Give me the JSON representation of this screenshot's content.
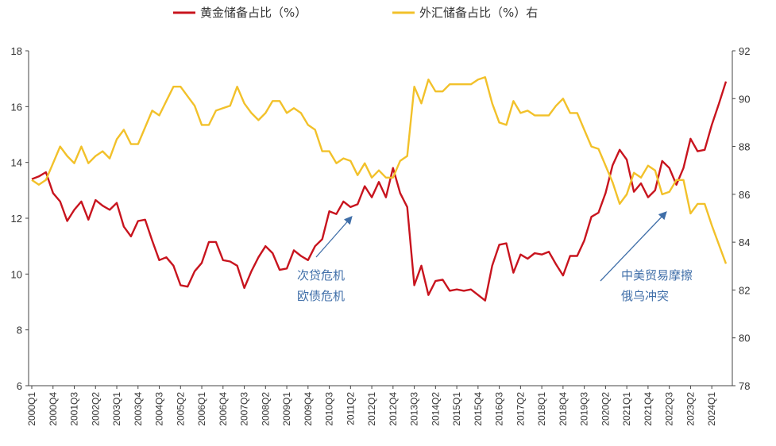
{
  "chart_data": {
    "type": "line",
    "legend": {
      "placement": "top-center"
    },
    "grid": false,
    "y_left": {
      "min": 6,
      "max": 18,
      "ticks": [
        6,
        8,
        10,
        12,
        14,
        16,
        18
      ]
    },
    "y_right": {
      "min": 78,
      "max": 92,
      "ticks": [
        78,
        80,
        82,
        84,
        86,
        88,
        90,
        92
      ]
    },
    "x_tick_labels": [
      "2000Q1",
      "2000Q4",
      "2001Q3",
      "2002Q2",
      "2003Q1",
      "2003Q4",
      "2004Q3",
      "2005Q2",
      "2006Q1",
      "2006Q4",
      "2007Q3",
      "2008Q2",
      "2009Q1",
      "2009Q4",
      "2010Q3",
      "2011Q2",
      "2012Q1",
      "2012Q4",
      "2013Q3",
      "2014Q2",
      "2015Q1",
      "2015Q4",
      "2016Q3",
      "2017Q2",
      "2018Q1",
      "2018Q4",
      "2019Q3",
      "2020Q2",
      "2021Q1",
      "2021Q4",
      "2022Q3",
      "2023Q2",
      "2024Q1"
    ],
    "x_start_quarter": "2000Q1",
    "series": [
      {
        "name": "黄金储备占比（%）",
        "axis": "left",
        "color": "#c8141e",
        "values": [
          13.4,
          13.5,
          13.65,
          12.9,
          12.6,
          11.9,
          12.3,
          12.6,
          11.95,
          12.65,
          12.45,
          12.3,
          12.55,
          11.7,
          11.35,
          11.9,
          11.95,
          11.2,
          10.5,
          10.6,
          10.3,
          9.6,
          9.55,
          10.1,
          10.4,
          11.15,
          11.15,
          10.5,
          10.45,
          10.3,
          9.5,
          10.1,
          10.6,
          11.0,
          10.75,
          10.15,
          10.2,
          10.85,
          10.65,
          10.5,
          11.0,
          11.25,
          12.25,
          12.15,
          12.6,
          12.4,
          12.5,
          13.15,
          12.75,
          13.3,
          12.75,
          13.8,
          12.9,
          12.4,
          9.6,
          10.3,
          9.25,
          9.75,
          9.8,
          9.4,
          9.45,
          9.4,
          9.45,
          9.25,
          9.05,
          10.3,
          11.05,
          11.1,
          10.05,
          10.7,
          10.55,
          10.75,
          10.7,
          10.8,
          10.35,
          9.95,
          10.65,
          10.65,
          11.2,
          12.05,
          12.2,
          12.9,
          13.9,
          14.45,
          14.1,
          12.95,
          13.25,
          12.75,
          13.0,
          14.05,
          13.8,
          13.2,
          13.8,
          14.85,
          14.4,
          14.45,
          15.35,
          16.1,
          16.9
        ]
      },
      {
        "name": "外汇储备占比（%）右",
        "axis": "right",
        "color": "#f2c12a",
        "values": [
          86.6,
          86.4,
          86.6,
          87.3,
          88.0,
          87.6,
          87.3,
          88.0,
          87.3,
          87.6,
          87.8,
          87.5,
          88.3,
          88.7,
          88.1,
          88.1,
          88.8,
          89.5,
          89.3,
          89.9,
          90.5,
          90.5,
          90.1,
          89.7,
          88.9,
          88.9,
          89.5,
          89.6,
          89.7,
          90.5,
          89.8,
          89.4,
          89.1,
          89.4,
          89.9,
          89.9,
          89.4,
          89.6,
          89.4,
          88.9,
          88.7,
          87.8,
          87.8,
          87.3,
          87.5,
          87.4,
          86.8,
          87.3,
          86.7,
          87.0,
          86.7,
          86.7,
          87.4,
          87.6,
          90.5,
          89.8,
          90.8,
          90.3,
          90.3,
          90.6,
          90.6,
          90.6,
          90.6,
          90.8,
          90.9,
          89.8,
          89.0,
          88.9,
          89.9,
          89.4,
          89.5,
          89.3,
          89.3,
          89.3,
          89.7,
          90.0,
          89.4,
          89.4,
          88.7,
          88.0,
          87.9,
          87.2,
          86.5,
          85.6,
          86.0,
          86.9,
          86.7,
          87.2,
          87.0,
          86.0,
          86.1,
          86.6,
          86.6,
          85.2,
          85.6,
          85.6,
          84.7,
          83.9,
          83.1
        ]
      }
    ],
    "annotations": [
      {
        "lines": [
          "次贷危机",
          "欧债危机"
        ],
        "x_quarter": "2009Q4"
      },
      {
        "lines": [
          "中美贸易摩擦",
          "俄乌冲突"
        ],
        "x_quarter": "2019Q3"
      }
    ]
  }
}
